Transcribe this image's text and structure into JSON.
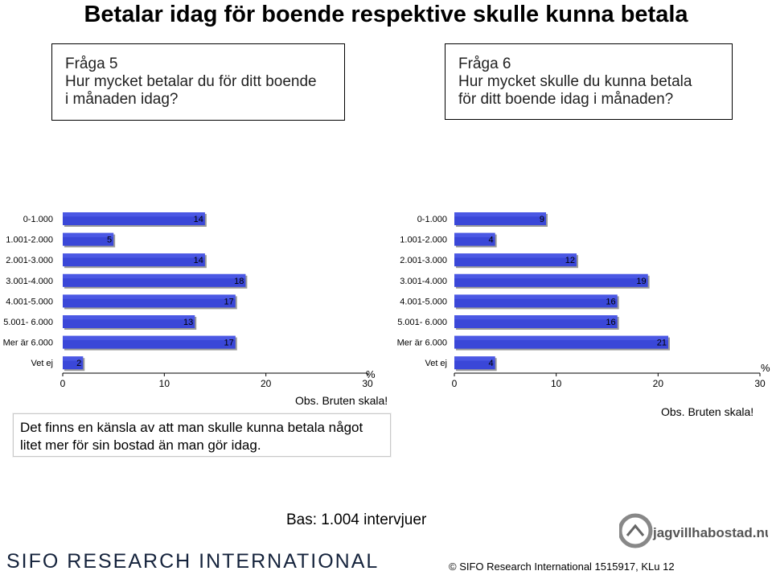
{
  "title": "Betalar idag för boende respektive skulle kunna betala",
  "q5": {
    "line1": "Fråga 5",
    "line2": "Hur mycket betalar du för ditt boende",
    "line3": "i månaden idag?"
  },
  "q6": {
    "line1": "Fråga 6",
    "line2": "Hur mycket skulle du kunna  betala",
    "line3": "för ditt boende idag i månaden?"
  },
  "chart_data": [
    {
      "type": "bar",
      "orientation": "horizontal",
      "categories": [
        "0-1.000",
        "1.001-2.000",
        "2.001-3.000",
        "3.001-4.000",
        "4.001-5.000",
        "5.001- 6.000",
        "Mer är 6.000",
        "Vet ej"
      ],
      "values": [
        14,
        5,
        14,
        18,
        17,
        13,
        17,
        2
      ],
      "xlim": [
        0,
        30
      ],
      "xticks": [
        "0",
        "10",
        "20",
        "30"
      ],
      "unit": "%",
      "bar_color": "#3a47d8"
    },
    {
      "type": "bar",
      "orientation": "horizontal",
      "categories": [
        "0-1.000",
        "1.001-2.000",
        "2.001-3.000",
        "3.001-4.000",
        "4.001-5.000",
        "5.001- 6.000",
        "Mer är 6.000",
        "Vet ej"
      ],
      "values": [
        9,
        4,
        12,
        19,
        16,
        16,
        21,
        4
      ],
      "xlim": [
        0,
        30
      ],
      "xticks": [
        "0",
        "10",
        "20",
        "30"
      ],
      "unit": "%",
      "bar_color": "#3a47d8"
    }
  ],
  "obs_left": "Obs. Bruten skala!",
  "obs_right": "Obs. Bruten skala!",
  "note": {
    "line1": "Det finns en känsla av att man skulle kunna betala något",
    "line2": "litet mer för sin bostad än man gör idag."
  },
  "bas": "Bas: 1.004 intervjuer",
  "brand": "SIFO RESEARCH INTERNATIONAL",
  "logo_text": "jagvillhabostad.nu",
  "copyright": "©   SIFO Research International 1515917, KLu 12"
}
